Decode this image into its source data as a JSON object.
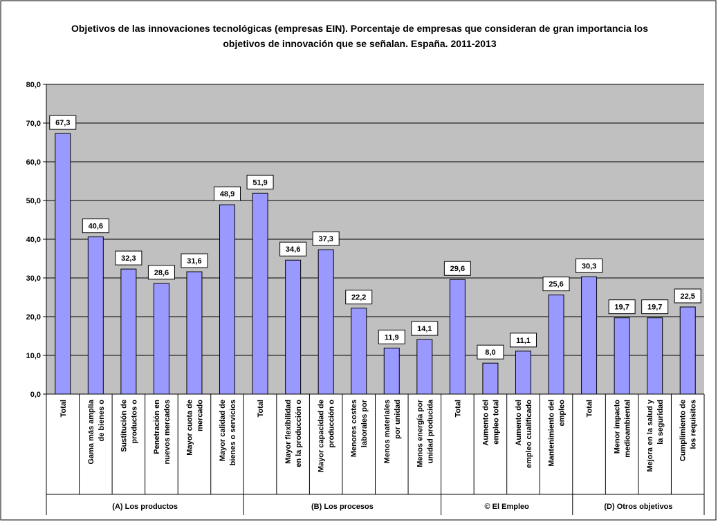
{
  "chart_data": {
    "type": "bar",
    "title": "Objetivos de las innovaciones tecnológicas (empresas EIN). Porcentaje de empresas que consideran de gran importancia los objetivos de innovación que se señalan. España. 2011-2013",
    "color": "#9999ff",
    "grid": true,
    "ylim": [
      0,
      80
    ],
    "yticks": [
      {
        "value": 0,
        "label": "0,0"
      },
      {
        "value": 10,
        "label": "10,0"
      },
      {
        "value": 20,
        "label": "20,0"
      },
      {
        "value": 30,
        "label": "30,0"
      },
      {
        "value": 40,
        "label": "40,0"
      },
      {
        "value": 50,
        "label": "50,0"
      },
      {
        "value": 60,
        "label": "60,0"
      },
      {
        "value": 70,
        "label": "70,0"
      },
      {
        "value": 80,
        "label": "80,0"
      }
    ],
    "groups": [
      {
        "name": "(A) Los productos",
        "categories": [
          [
            "Total"
          ],
          [
            "Gama más amplia",
            "de bienes o"
          ],
          [
            "Sustitución de",
            "productos o"
          ],
          [
            "Penetración en",
            "nuevos mercados"
          ],
          [
            "Mayor cuota de",
            "mercado"
          ],
          [
            "Mayor calidad de",
            "bienes o servicios"
          ]
        ],
        "values": [
          67.3,
          40.6,
          32.3,
          28.6,
          31.6,
          48.9
        ],
        "value_labels": [
          "67,3",
          "40,6",
          "32,3",
          "28,6",
          "31,6",
          "48,9"
        ]
      },
      {
        "name": "(B) Los procesos",
        "categories": [
          [
            "Total"
          ],
          [
            "Mayor flexibilidad",
            "en la producción o"
          ],
          [
            "Mayor capacidad de",
            "producción o"
          ],
          [
            "Menores costes",
            "laborales por"
          ],
          [
            "Menos materiales",
            "por unidad"
          ],
          [
            "Menos energía por",
            "unidad producida"
          ]
        ],
        "values": [
          51.9,
          34.6,
          37.3,
          22.2,
          11.9,
          14.1
        ],
        "value_labels": [
          "51,9",
          "34,6",
          "37,3",
          "22,2",
          "11,9",
          "14,1"
        ]
      },
      {
        "name": "© El Empleo",
        "categories": [
          [
            "Total"
          ],
          [
            "Aumento del",
            "empleo total"
          ],
          [
            "Aumento del",
            "empleo cualificado"
          ],
          [
            "Mantenimiento del",
            "empleo"
          ]
        ],
        "values": [
          29.6,
          8.0,
          11.1,
          25.6
        ],
        "value_labels": [
          "29,6",
          "8,0",
          "11,1",
          "25,6"
        ]
      },
      {
        "name": "(D) Otros objetivos",
        "categories": [
          [
            "Total"
          ],
          [
            "Menor impacto",
            "medioambiental"
          ],
          [
            "Mejora en la salud y",
            "la seguridad"
          ],
          [
            "Cumplimiento de",
            "los requisitos"
          ]
        ],
        "values": [
          30.3,
          19.7,
          19.7,
          22.5
        ],
        "value_labels": [
          "30,3",
          "19,7",
          "19,7",
          "22,5"
        ]
      }
    ]
  }
}
